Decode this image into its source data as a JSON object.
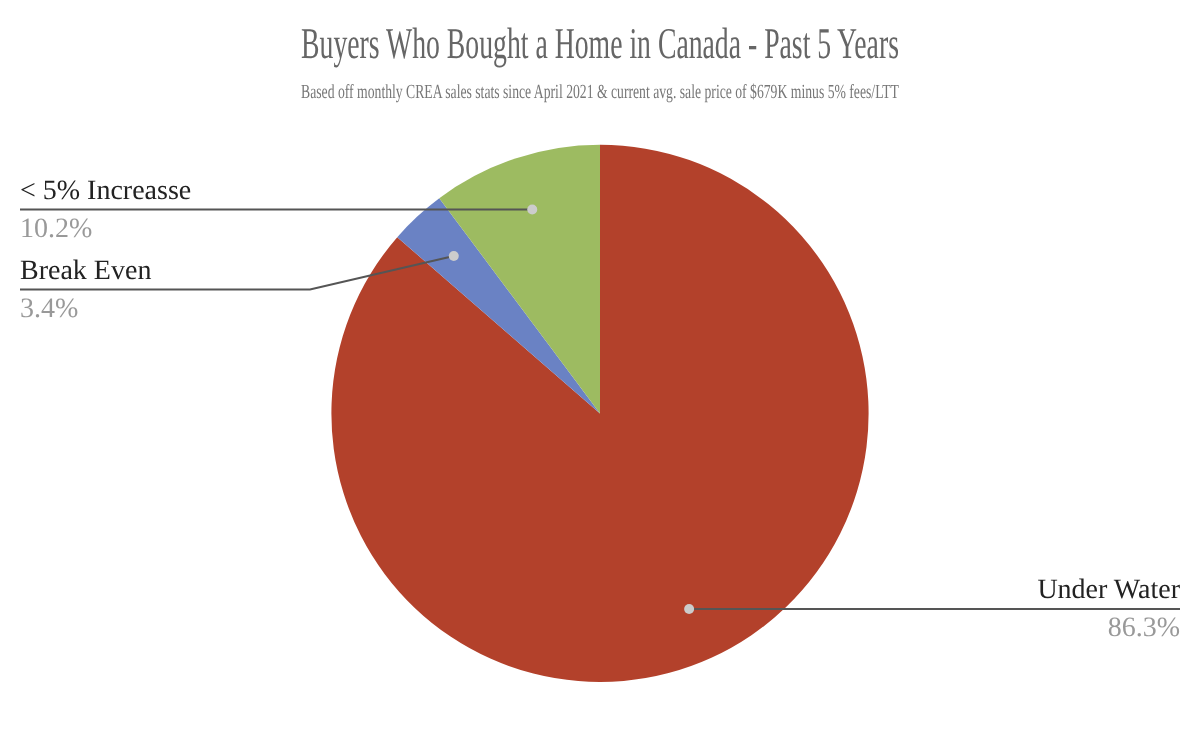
{
  "chart_data": {
    "type": "pie",
    "title": "Buyers Who Bought a Home in Canada - Past 5 Years",
    "subtitle": "Based off monthly CREA sales stats since April 2021 & current avg. sale price of $679K minus 5% fees/LTT",
    "categories": [
      "Under Water",
      "Break Even",
      "< 5% Increasse"
    ],
    "values": [
      86.3,
      3.4,
      10.2
    ],
    "colors": [
      "#b3412b",
      "#6a82c4",
      "#9dbb61"
    ],
    "value_labels": [
      "86.3%",
      "3.4%",
      "10.2%"
    ],
    "legend": false
  }
}
